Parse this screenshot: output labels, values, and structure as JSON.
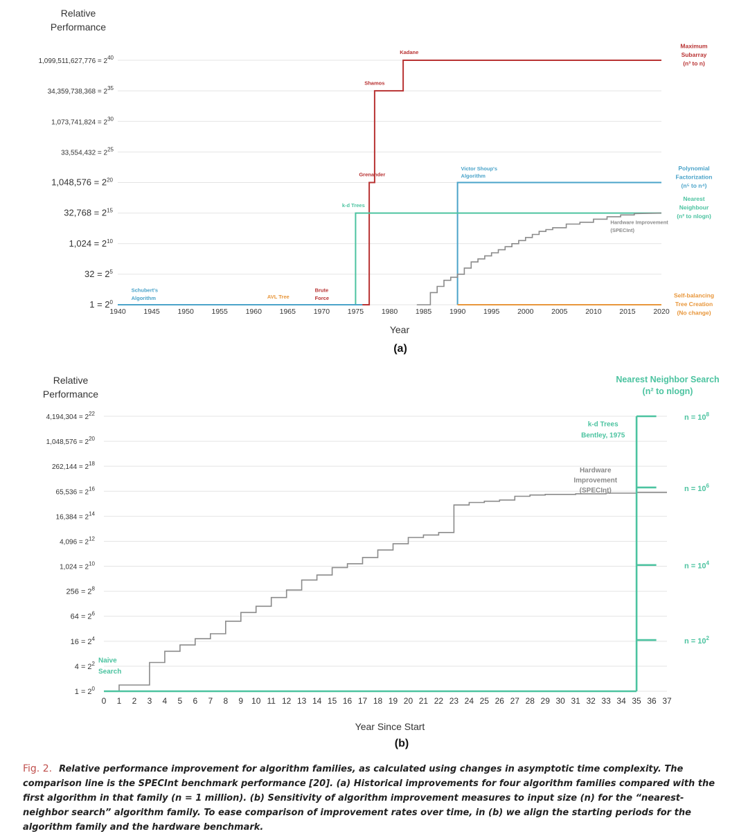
{
  "colors": {
    "red": "#b83232",
    "blue": "#4aa3c9",
    "teal": "#4cc3a0",
    "orange": "#e8963a",
    "gray": "#8a8a8a",
    "grid": "#e4e4e4",
    "text": "#333333"
  },
  "chart_data": [
    {
      "type": "line",
      "id": "a",
      "panel_label": "(a)",
      "ylabel_line1": "Relative",
      "ylabel_line2": "Performance",
      "xlabel": "Year",
      "xlim": [
        1940,
        2020
      ],
      "ylim_log2": [
        0,
        40
      ],
      "x_ticks": [
        "1940",
        "1945",
        "1950",
        "1955",
        "1960",
        "1965",
        "1970",
        "1975",
        "1980",
        "1985",
        "1990",
        "1995",
        "2000",
        "2005",
        "2010",
        "2015",
        "2020"
      ],
      "y_ticks": [
        {
          "exp": 0,
          "label": "1 = 2",
          "sup": "0"
        },
        {
          "exp": 5,
          "label": "32 = 2",
          "sup": "5"
        },
        {
          "exp": 10,
          "label": "1,024 = 2",
          "sup": "10"
        },
        {
          "exp": 15,
          "label": "32,768 = 2",
          "sup": "15"
        },
        {
          "exp": 20,
          "label": "1,048,576 = 2",
          "sup": "20"
        },
        {
          "exp": 25,
          "label": "33,554,432 = 2",
          "sup": "25"
        },
        {
          "exp": 30,
          "label": "1,073,741,824 = 2",
          "sup": "30"
        },
        {
          "exp": 35,
          "label": "34,359,738,368 = 2",
          "sup": "35"
        },
        {
          "exp": 40,
          "label": "1,099,511,627,776 = 2",
          "sup": "40"
        }
      ],
      "series": [
        {
          "name": "Maximum Subarray",
          "color_key": "red",
          "points": [
            [
              1970,
              0
            ],
            [
              1977,
              0
            ],
            [
              1977,
              20
            ],
            [
              1977.8,
              20
            ],
            [
              1977.8,
              35
            ],
            [
              1982,
              35
            ],
            [
              1982,
              40
            ],
            [
              2020,
              40
            ]
          ]
        },
        {
          "name": "Polynomial Factorization",
          "color_key": "blue",
          "points": [
            [
              1990,
              0
            ],
            [
              1990,
              20
            ],
            [
              2020,
              20
            ]
          ]
        },
        {
          "name": "Nearest Neighbour",
          "color_key": "teal",
          "points": [
            [
              1975,
              0
            ],
            [
              1975,
              15
            ],
            [
              2020,
              15
            ]
          ]
        },
        {
          "name": "Schubert's Algorithm baseline",
          "color_key": "blue",
          "points": [
            [
              1940,
              0
            ],
            [
              1976,
              0
            ]
          ]
        },
        {
          "name": "Self-balancing Tree Creation",
          "color_key": "orange",
          "points": [
            [
              1990,
              0
            ],
            [
              2020,
              0
            ]
          ]
        },
        {
          "name": "Hardware Improvement (SPECInt)",
          "color_key": "gray",
          "points": [
            [
              1984,
              0
            ],
            [
              1986,
              0
            ],
            [
              1986,
              2
            ],
            [
              1987,
              2
            ],
            [
              1987,
              3
            ],
            [
              1988,
              3
            ],
            [
              1988,
              4
            ],
            [
              1989,
              4
            ],
            [
              1989,
              4.5
            ],
            [
              1990,
              4.5
            ],
            [
              1990,
              5
            ],
            [
              1991,
              5
            ],
            [
              1991,
              6
            ],
            [
              1992,
              6
            ],
            [
              1992,
              7
            ],
            [
              1993,
              7
            ],
            [
              1993,
              7.5
            ],
            [
              1994,
              7.5
            ],
            [
              1994,
              8
            ],
            [
              1995,
              8
            ],
            [
              1995,
              8.5
            ],
            [
              1996,
              8.5
            ],
            [
              1996,
              9
            ],
            [
              1997,
              9
            ],
            [
              1997,
              9.5
            ],
            [
              1998,
              9.5
            ],
            [
              1998,
              10
            ],
            [
              1999,
              10
            ],
            [
              1999,
              10.5
            ],
            [
              2000,
              10.5
            ],
            [
              2000,
              11
            ],
            [
              2001,
              11
            ],
            [
              2001,
              11.5
            ],
            [
              2002,
              11.5
            ],
            [
              2002,
              12
            ],
            [
              2003,
              12
            ],
            [
              2003,
              12.3
            ],
            [
              2004,
              12.3
            ],
            [
              2004,
              12.6
            ],
            [
              2006,
              12.6
            ],
            [
              2006,
              13.2
            ],
            [
              2008,
              13.2
            ],
            [
              2008,
              13.5
            ],
            [
              2010,
              13.5
            ],
            [
              2010,
              14
            ],
            [
              2012,
              14
            ],
            [
              2012,
              14.4
            ],
            [
              2014,
              14.4
            ],
            [
              2014,
              14.7
            ],
            [
              2016,
              14.7
            ],
            [
              2016,
              14.9
            ],
            [
              2020,
              15
            ]
          ]
        }
      ],
      "annotations": [
        {
          "text": "Kadane",
          "color_key": "red",
          "x": 1981.5,
          "y": 41
        },
        {
          "text": "Shamos",
          "color_key": "red",
          "x": 1976.3,
          "y": 36
        },
        {
          "text": "Grenander",
          "color_key": "red",
          "x": 1975.5,
          "y": 21
        },
        {
          "text": "Brute",
          "color_key": "red",
          "x": 1969,
          "y": 2.1
        },
        {
          "text": "Force",
          "color_key": "red",
          "x": 1969,
          "y": 0.8
        },
        {
          "text": "k-d Trees",
          "color_key": "teal",
          "x": 1973,
          "y": 16
        },
        {
          "text": "Victor Shoup's",
          "color_key": "blue",
          "x": 1990.5,
          "y": 22
        },
        {
          "text": "Algorithm",
          "color_key": "blue",
          "x": 1990.5,
          "y": 20.8
        },
        {
          "text": "Schubert's",
          "color_key": "blue",
          "x": 1942,
          "y": 2.1
        },
        {
          "text": "Algorithm",
          "color_key": "blue",
          "x": 1942,
          "y": 0.8
        },
        {
          "text": "AVL Tree",
          "color_key": "orange",
          "x": 1962,
          "y": 1.0
        },
        {
          "text": "Hardware Improvement",
          "color_key": "gray",
          "x": 2012.5,
          "y": 13.2
        },
        {
          "text": "(SPECInt)",
          "color_key": "gray",
          "x": 2012.5,
          "y": 11.9
        }
      ],
      "right_labels": [
        {
          "lines": [
            "Maximum",
            "Subarray",
            "(n³ to n)"
          ],
          "color_key": "red",
          "y": 42
        },
        {
          "lines": [
            "Polynomial",
            "Factorization",
            "(n⁵ to n⁴)"
          ],
          "color_key": "blue",
          "y": 22
        },
        {
          "lines": [
            "Nearest",
            "Neighbour",
            "(n² to nlogn)"
          ],
          "color_key": "teal",
          "y": 17
        },
        {
          "lines": [
            "Self-balancing",
            "Tree Creation",
            "(No change)"
          ],
          "color_key": "orange",
          "y": 1.2
        }
      ]
    },
    {
      "type": "line",
      "id": "b",
      "panel_label": "(b)",
      "ylabel_line1": "Relative",
      "ylabel_line2": "Performance",
      "xlabel": "Year Since Start",
      "xlim": [
        0,
        37
      ],
      "ylim_log2": [
        0,
        22
      ],
      "title_line1": "Nearest Neighbor Search",
      "title_line2": "(n² to  nlogn)",
      "x_ticks": [
        "0",
        "1",
        "2",
        "3",
        "4",
        "5",
        "6",
        "7",
        "8",
        "9",
        "10",
        "11",
        "12",
        "13",
        "14",
        "15",
        "16",
        "17",
        "18",
        "19",
        "20",
        "21",
        "22",
        "23",
        "24",
        "25",
        "26",
        "27",
        "28",
        "29",
        "30",
        "31",
        "32",
        "33",
        "34",
        "35",
        "36",
        "37"
      ],
      "y_ticks": [
        {
          "exp": 0,
          "label": "1 = 2",
          "sup": "0"
        },
        {
          "exp": 2,
          "label": "4 = 2",
          "sup": "2"
        },
        {
          "exp": 4,
          "label": "16 = 2",
          "sup": "4"
        },
        {
          "exp": 6,
          "label": "64 = 2",
          "sup": "6"
        },
        {
          "exp": 8,
          "label": "256 = 2",
          "sup": "8"
        },
        {
          "exp": 10,
          "label": "1,024 = 2",
          "sup": "10"
        },
        {
          "exp": 12,
          "label": "4,096 = 2",
          "sup": "12"
        },
        {
          "exp": 14,
          "label": "16,384 = 2",
          "sup": "14"
        },
        {
          "exp": 16,
          "label": "65,536 = 2",
          "sup": "16"
        },
        {
          "exp": 18,
          "label": "262,144 = 2",
          "sup": "18"
        },
        {
          "exp": 20,
          "label": "1,048,576 = 2",
          "sup": "20"
        },
        {
          "exp": 22,
          "label": "4,194,304 = 2",
          "sup": "22"
        }
      ],
      "series": [
        {
          "name": "Hardware Improvement (SPECInt)",
          "color_key": "gray",
          "points": [
            [
              0,
              0
            ],
            [
              1,
              0
            ],
            [
              1,
              0.5
            ],
            [
              3,
              0.5
            ],
            [
              3,
              2.3
            ],
            [
              4,
              2.3
            ],
            [
              4,
              3.2
            ],
            [
              5,
              3.2
            ],
            [
              5,
              3.7
            ],
            [
              6,
              3.7
            ],
            [
              6,
              4.2
            ],
            [
              7,
              4.2
            ],
            [
              7,
              4.6
            ],
            [
              8,
              4.6
            ],
            [
              8,
              5.6
            ],
            [
              9,
              5.6
            ],
            [
              9,
              6.3
            ],
            [
              10,
              6.3
            ],
            [
              10,
              6.8
            ],
            [
              11,
              6.8
            ],
            [
              11,
              7.5
            ],
            [
              12,
              7.5
            ],
            [
              12,
              8.1
            ],
            [
              13,
              8.1
            ],
            [
              13,
              8.9
            ],
            [
              14,
              8.9
            ],
            [
              14,
              9.3
            ],
            [
              15,
              9.3
            ],
            [
              15,
              9.9
            ],
            [
              16,
              9.9
            ],
            [
              16,
              10.2
            ],
            [
              17,
              10.2
            ],
            [
              17,
              10.7
            ],
            [
              18,
              10.7
            ],
            [
              18,
              11.3
            ],
            [
              19,
              11.3
            ],
            [
              19,
              11.8
            ],
            [
              20,
              11.8
            ],
            [
              20,
              12.3
            ],
            [
              21,
              12.3
            ],
            [
              21,
              12.5
            ],
            [
              22,
              12.5
            ],
            [
              22,
              12.7
            ],
            [
              23,
              12.7
            ],
            [
              23,
              14.9
            ],
            [
              24,
              14.9
            ],
            [
              24,
              15.1
            ],
            [
              25,
              15.1
            ],
            [
              25,
              15.2
            ],
            [
              26,
              15.2
            ],
            [
              26,
              15.3
            ],
            [
              27,
              15.3
            ],
            [
              27,
              15.6
            ],
            [
              28,
              15.6
            ],
            [
              28,
              15.7
            ],
            [
              29,
              15.7
            ],
            [
              29,
              15.75
            ],
            [
              31,
              15.75
            ],
            [
              31,
              15.8
            ],
            [
              33,
              15.8
            ],
            [
              33,
              15.85
            ],
            [
              35,
              15.85
            ],
            [
              35,
              15.9
            ],
            [
              37,
              15.9
            ]
          ]
        },
        {
          "name": "Naive Search",
          "color_key": "teal",
          "points": [
            [
              0,
              0
            ],
            [
              35,
              0
            ]
          ]
        },
        {
          "name": "k-d Trees",
          "color_key": "teal",
          "points": [
            [
              35,
              0
            ],
            [
              35,
              22
            ]
          ]
        }
      ],
      "n_levels": [
        {
          "label": "n = 10",
          "sup": "8",
          "y": 22
        },
        {
          "label": "n = 10",
          "sup": "6",
          "y": 16.3
        },
        {
          "label": "n = 10",
          "sup": "4",
          "y": 10.1
        },
        {
          "label": "n = 10",
          "sup": "2",
          "y": 4.1
        }
      ],
      "annotations": [
        {
          "text": "k-d Trees",
          "color_key": "teal",
          "x": 32.8,
          "y": 21.2
        },
        {
          "text": "Bentley, 1975",
          "color_key": "teal",
          "x": 32.8,
          "y": 20.3
        },
        {
          "text": "Hardware",
          "color_key": "gray",
          "x": 32.3,
          "y": 17.5
        },
        {
          "text": "Improvement",
          "color_key": "gray",
          "x": 32.3,
          "y": 16.7
        },
        {
          "text": "(SPECInt)",
          "color_key": "gray",
          "x": 32.3,
          "y": 15.9
        },
        {
          "text": "Naive",
          "color_key": "teal",
          "x": 0.6,
          "y": 2.3
        },
        {
          "text": "Search",
          "color_key": "teal",
          "x": 0.6,
          "y": 1.4
        }
      ]
    }
  ],
  "caption": {
    "fig": "Fig. 2.",
    "text": "Relative performance improvement for algorithm families, as calculated using changes in asymptotic time complexity. The comparison line is the SPECInt benchmark performance [20]. (a) Historical improvements for four algorithm families compared with the first algorithm in that family (n = 1 million). (b) Sensitivity of algorithm improvement measures to input size (n) for the “nearest-neighbor search” algorithm family. To ease comparison of improvement rates over time, in (b) we align the starting periods for the algorithm family and the hardware benchmark."
  }
}
